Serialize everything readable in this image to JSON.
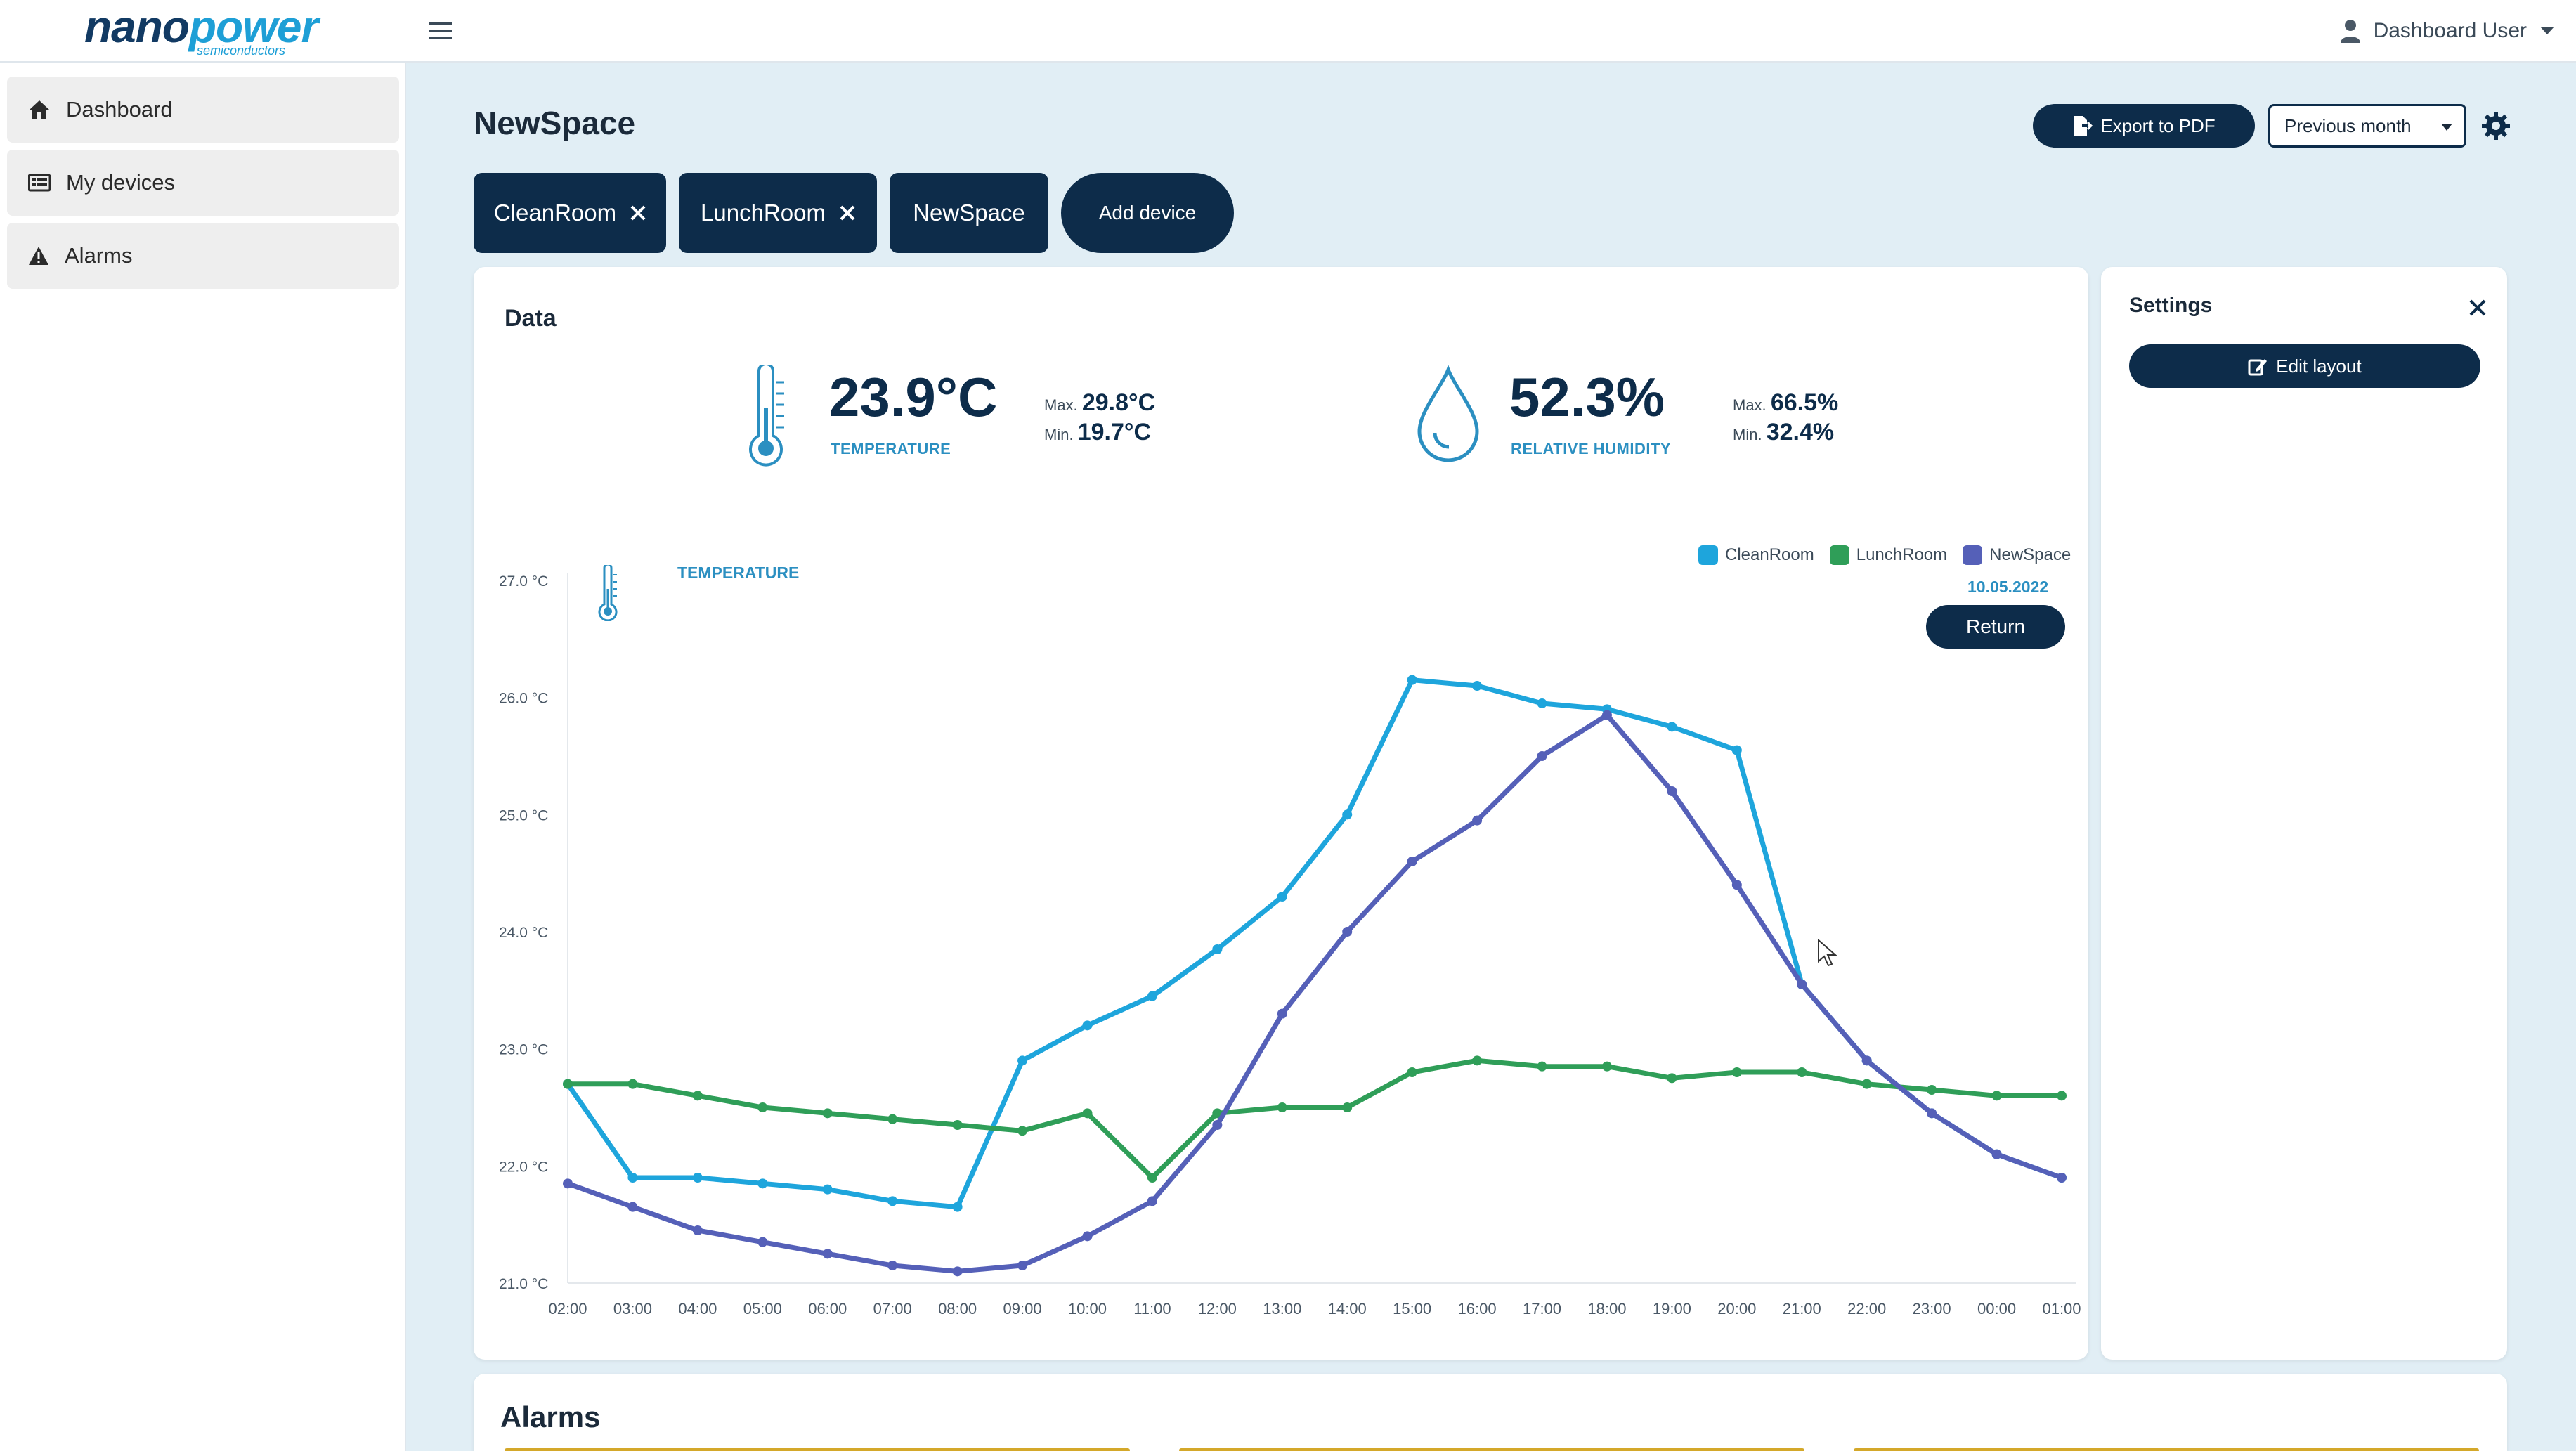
{
  "app": {
    "logo_part1": "nano",
    "logo_part2": "power",
    "logo_sub": "semiconductors",
    "user_name": "Dashboard User"
  },
  "sidebar": {
    "items": [
      {
        "label": "Dashboard",
        "icon": "home-icon"
      },
      {
        "label": "My devices",
        "icon": "devices-icon"
      },
      {
        "label": "Alarms",
        "icon": "warning-icon"
      }
    ]
  },
  "header": {
    "title": "NewSpace",
    "export_label": "Export to PDF",
    "period_value": "Previous month"
  },
  "devices": {
    "chips": [
      "CleanRoom",
      "LunchRoom",
      "NewSpace"
    ],
    "add_label": "Add device"
  },
  "data_card": {
    "title": "Data",
    "temperature": {
      "value": "23.9°C",
      "label": "TEMPERATURE",
      "max_prefix": "Max.",
      "max": "29.8°C",
      "min_prefix": "Min.",
      "min": "19.7°C"
    },
    "humidity": {
      "value": "52.3%",
      "label": "RELATIVE HUMIDITY",
      "max_prefix": "Max.",
      "max": "66.5%",
      "min_prefix": "Min.",
      "min": "32.4%"
    },
    "return_label": "Return"
  },
  "settings": {
    "title": "Settings",
    "edit_label": "Edit layout"
  },
  "alarms": {
    "title": "Alarms"
  },
  "colors": {
    "primary": "#0d2c4a",
    "accent": "#2b8fc1",
    "cleanroom": "#1ea5dc",
    "lunchroom": "#2f9e58",
    "newspace": "#5560b8",
    "alarm": "#d4a82a"
  },
  "chart_data": {
    "type": "line",
    "title": "TEMPERATURE",
    "date_label": "10.05.2022",
    "x": [
      "02:00",
      "03:00",
      "04:00",
      "05:00",
      "06:00",
      "07:00",
      "08:00",
      "09:00",
      "10:00",
      "11:00",
      "12:00",
      "13:00",
      "14:00",
      "15:00",
      "16:00",
      "17:00",
      "18:00",
      "19:00",
      "20:00",
      "21:00",
      "22:00",
      "23:00",
      "00:00",
      "01:00"
    ],
    "y_ticks": [
      "21.0 °C",
      "22.0 °C",
      "23.0 °C",
      "24.0 °C",
      "25.0 °C",
      "26.0 °C",
      "27.0 °C"
    ],
    "ylim": [
      21.0,
      27.0
    ],
    "series": [
      {
        "name": "CleanRoom",
        "color": "#1ea5dc",
        "values": [
          22.7,
          21.9,
          21.9,
          21.85,
          21.8,
          21.7,
          21.65,
          22.9,
          23.2,
          23.45,
          23.85,
          24.3,
          25.0,
          26.15,
          26.1,
          25.95,
          25.9,
          25.75,
          25.55,
          23.55,
          22.9,
          22.45,
          22.1,
          21.9
        ]
      },
      {
        "name": "LunchRoom",
        "color": "#2f9e58",
        "values": [
          22.7,
          22.7,
          22.6,
          22.5,
          22.45,
          22.4,
          22.35,
          22.3,
          22.45,
          21.9,
          22.45,
          22.5,
          22.5,
          22.8,
          22.9,
          22.85,
          22.85,
          22.75,
          22.8,
          22.8,
          22.7,
          22.65,
          22.6,
          22.6
        ]
      },
      {
        "name": "NewSpace",
        "color": "#5560b8",
        "values": [
          21.85,
          21.65,
          21.45,
          21.35,
          21.25,
          21.15,
          21.1,
          21.15,
          21.4,
          21.7,
          22.35,
          23.3,
          24.0,
          24.6,
          24.95,
          25.5,
          25.85,
          25.2,
          24.4,
          23.55,
          22.9,
          22.45,
          22.1,
          21.9
        ]
      }
    ]
  }
}
